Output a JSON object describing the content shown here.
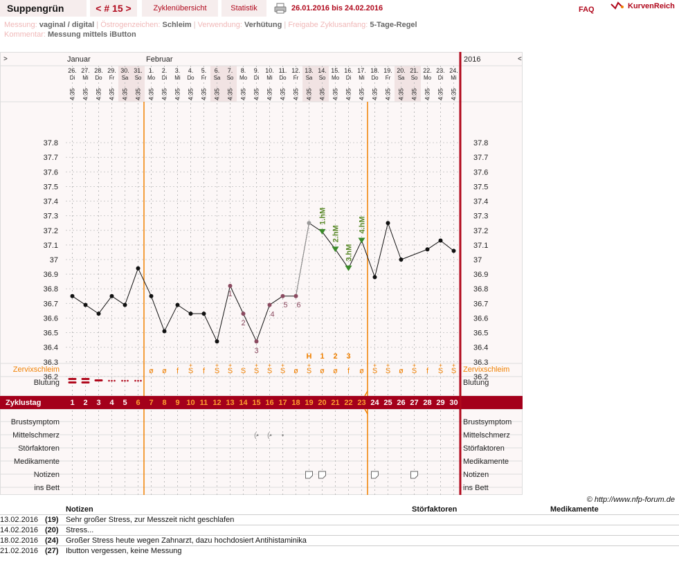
{
  "header": {
    "name": "Suppengrün",
    "cycle_nav": "< # 15 >",
    "tab_overview": "Zyklenübersicht",
    "tab_stats": "Statistik",
    "range": "26.01.2016 bis 24.02.2016",
    "faq": "FAQ",
    "logo": "KurvenReich"
  },
  "info": {
    "messung_label": "Messung:",
    "messung": "vaginal / digital",
    "oestrogen_label": "Östrogenzeichen:",
    "oestrogen": "Schleim",
    "verw_label": "Verwendung:",
    "verw": "Verhütung",
    "freigabe_label": "Freigabe Zyklusanfang:",
    "freigabe": "5-Tage-Regel",
    "komm_label": "Kommentar:",
    "komm": "Messung mittels iButton"
  },
  "chart_data": {
    "type": "line",
    "months": [
      {
        "label": "Januar",
        "col": 0
      },
      {
        "label": "Februar",
        "col": 6
      }
    ],
    "year": "2016",
    "nav_left": ">",
    "nav_right": "<",
    "dates": [
      "26.",
      "27.",
      "28.",
      "29.",
      "30.",
      "31.",
      "1.",
      "2.",
      "3.",
      "4.",
      "5.",
      "6.",
      "7.",
      "8.",
      "9.",
      "10.",
      "11.",
      "12.",
      "13.",
      "14.",
      "15.",
      "16.",
      "17.",
      "18.",
      "19.",
      "20.",
      "21.",
      "22.",
      "23.",
      "24."
    ],
    "weekdays": [
      "Di",
      "Mi",
      "Do",
      "Fr",
      "Sa",
      "So",
      "Mo",
      "Di",
      "Mi",
      "Do",
      "Fr",
      "Sa",
      "So",
      "Mo",
      "Di",
      "Mi",
      "Do",
      "Fr",
      "Sa",
      "So",
      "Mo",
      "Di",
      "Mi",
      "Do",
      "Fr",
      "Sa",
      "So",
      "Mo",
      "Di",
      "Mi"
    ],
    "times": [
      "4:35",
      "4:35",
      "4:35",
      "4:35",
      "4:35",
      "4:35",
      "4:35",
      "4:35",
      "4:35",
      "4:35",
      "4:35",
      "4:35",
      "4:35",
      "4:35",
      "4:35",
      "4:35",
      "4:35",
      "4:35",
      "4:35",
      "4:35",
      "4:35",
      "4:35",
      "4:35",
      "4:35",
      "4:35",
      "4:35",
      "4:35",
      "4:35",
      "4:35",
      "4:35"
    ],
    "weekend": [
      4,
      5,
      11,
      12,
      18,
      19,
      25,
      26
    ],
    "ylim": [
      36.1,
      37.9
    ],
    "yticks": [
      "37.8",
      "37.7",
      "37.6",
      "37.5",
      "37.4",
      "37.3",
      "37.2",
      "37.1",
      "37",
      "36.9",
      "36.8",
      "36.7",
      "36.6",
      "36.5",
      "36.4",
      "36.3",
      "36.2"
    ],
    "temps": [
      36.75,
      36.69,
      36.63,
      36.75,
      36.69,
      36.94,
      36.75,
      36.51,
      36.69,
      36.63,
      36.63,
      36.44,
      36.82,
      36.63,
      36.44,
      36.69,
      36.75,
      36.75,
      37.25,
      37.19,
      37.07,
      36.94,
      37.13,
      36.88,
      37.25,
      37.0,
      null,
      37.07,
      37.13,
      37.06
    ],
    "low_labels": [
      {
        "col": 12,
        "t": "1"
      },
      {
        "col": 13,
        "t": "2"
      },
      {
        "col": 14,
        "t": "3"
      },
      {
        "col": 15,
        "t": "4"
      },
      {
        "col": 16,
        "t": "5"
      },
      {
        "col": 17,
        "t": "6"
      }
    ],
    "hm_labels": [
      {
        "col": 19,
        "t": "1.hM"
      },
      {
        "col": 20,
        "t": "2.hM"
      },
      {
        "col": 21,
        "t": "3.hM"
      },
      {
        "col": 22,
        "t": "4.hM"
      }
    ],
    "top_markers": [
      {
        "col": 18,
        "t": "H"
      },
      {
        "col": 19,
        "t": "1"
      },
      {
        "col": 20,
        "t": "2"
      },
      {
        "col": 21,
        "t": "3"
      }
    ],
    "zervix": [
      "",
      "",
      "",
      "",
      "",
      "",
      "ø",
      "ø",
      "f",
      "S",
      "f",
      "S",
      "S",
      "S",
      "S",
      "S",
      "S",
      "ø",
      "S",
      "ø",
      "ø",
      "f",
      "ø",
      "S",
      "S",
      "ø",
      "S",
      "f",
      "S",
      "S"
    ],
    "zervix_plus": [
      9,
      11,
      12,
      14,
      15,
      16,
      18,
      23,
      24,
      26,
      28,
      29
    ],
    "cycle_days": [
      "1",
      "2",
      "3",
      "4",
      "5",
      "6",
      "7",
      "8",
      "9",
      "10",
      "11",
      "12",
      "13",
      "14",
      "15",
      "16",
      "17",
      "18",
      "19",
      "20",
      "21",
      "22",
      "23",
      "24",
      "25",
      "26",
      "27",
      "28",
      "29",
      "30"
    ],
    "coverline": 36.81,
    "row_labels": {
      "zervix": "Zervixschleim",
      "blutung": "Blutung",
      "zyklustag": "Zyklustag",
      "brust": "Brustsymptom",
      "mittel": "Mittelschmerz",
      "stoer": "Störfaktoren",
      "medi": "Medikamente",
      "notizen": "Notizen",
      "bett": "ins Bett"
    },
    "note_cols": [
      18,
      19,
      23,
      26
    ]
  },
  "footer": {
    "copyright": "© http://www.nfp-forum.de"
  },
  "notes": {
    "h_notes": "Notizen",
    "h_stoer": "Störfaktoren",
    "h_medi": "Medikamente",
    "rows": [
      {
        "date": "13.02.2016",
        "day": "(19)",
        "text": "Sehr großer Stress, zur Messzeit nicht geschlafen"
      },
      {
        "date": "14.02.2016",
        "day": "(20)",
        "text": "Stress..."
      },
      {
        "date": "18.02.2016",
        "day": "(24)",
        "text": "Großer Stress heute wegen Zahnarzt, dazu hochdosiert Antihistaminika"
      },
      {
        "date": "21.02.2016",
        "day": "(27)",
        "text": "Ibutton vergessen, keine Messung"
      }
    ]
  },
  "colors": {
    "accent": "#b0081c",
    "orange": "#f08000",
    "green": "#5a8a2a",
    "zyklus_bar": "#a4001b"
  }
}
